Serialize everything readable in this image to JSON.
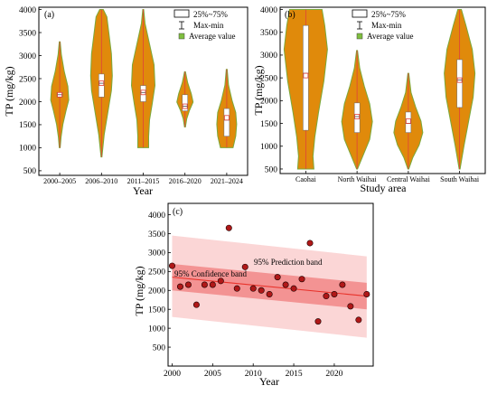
{
  "chart_data": [
    {
      "type": "violin",
      "panel_label": "(a)",
      "xlabel": "Year",
      "ylabel": "TP (mg/kg)",
      "ylim": [
        400,
        4050
      ],
      "yticks": [
        500,
        1000,
        1500,
        2000,
        2500,
        3000,
        3500,
        4000
      ],
      "categories": [
        "2000–2005",
        "2006–2010",
        "2011–2015",
        "2016–2020",
        "2021–2024"
      ],
      "groups": [
        {
          "min": 1000,
          "q1": 2100,
          "median": 2150,
          "q3": 2200,
          "max": 3300,
          "mean": 2150
        },
        {
          "min": 800,
          "q1": 2100,
          "median": 2400,
          "q3": 2600,
          "max": 4000,
          "mean": 2400
        },
        {
          "min": 1000,
          "q1": 2000,
          "median": 2200,
          "q3": 2350,
          "max": 4000,
          "mean": 2200
        },
        {
          "min": 1450,
          "q1": 1800,
          "median": 1900,
          "q3": 2150,
          "max": 2650,
          "mean": 1900
        },
        {
          "min": 1000,
          "q1": 1250,
          "median": 1600,
          "q3": 1850,
          "max": 2700,
          "mean": 1650
        }
      ],
      "legend": {
        "box": "25%~75%",
        "whisker": "Max-min",
        "mean": "Average value",
        "placement": "top-right"
      },
      "colors": {
        "fill": "#e08a0b",
        "fill_edge": "#7aa83a",
        "mean": "#7fbf3f",
        "whisker": "#e0413a"
      }
    },
    {
      "type": "violin",
      "panel_label": "(b)",
      "xlabel": "Study area",
      "ylabel": "TP (mg/kg)",
      "ylim": [
        400,
        4050
      ],
      "yticks": [
        500,
        1000,
        1500,
        2000,
        2500,
        3000,
        3500,
        4000
      ],
      "categories": [
        "Caohai",
        "North Waihai",
        "Central Waihai",
        "South Waihai"
      ],
      "groups": [
        {
          "min": 500,
          "q1": 1350,
          "median": 2600,
          "q3": 3650,
          "max": 4000,
          "mean": 2550
        },
        {
          "min": 500,
          "q1": 1300,
          "median": 1650,
          "q3": 1950,
          "max": 3100,
          "mean": 1650
        },
        {
          "min": 500,
          "q1": 1300,
          "median": 1500,
          "q3": 1750,
          "max": 2600,
          "mean": 1550
        },
        {
          "min": 500,
          "q1": 1850,
          "median": 2450,
          "q3": 2900,
          "max": 4000,
          "mean": 2450
        }
      ],
      "legend": {
        "box": "25%~75%",
        "whisker": "Max-min",
        "mean": "Average value",
        "placement": "top-right"
      },
      "colors": {
        "fill": "#e08a0b",
        "fill_edge": "#7aa83a",
        "mean": "#7fbf3f",
        "whisker": "#e0413a"
      }
    },
    {
      "type": "scatter",
      "panel_label": "(c)",
      "xlabel": "Year",
      "ylabel": "TP (mg/kg)",
      "xlim": [
        1999.5,
        2024.8
      ],
      "ylim": [
        0,
        4300
      ],
      "xticks": [
        2000,
        2005,
        2010,
        2015,
        2020
      ],
      "yticks": [
        500,
        1000,
        1500,
        2000,
        2500,
        3000,
        3500,
        4000
      ],
      "points": [
        {
          "x": 2000,
          "y": 2650
        },
        {
          "x": 2001,
          "y": 2100
        },
        {
          "x": 2002,
          "y": 2150
        },
        {
          "x": 2003,
          "y": 1620
        },
        {
          "x": 2004,
          "y": 2150
        },
        {
          "x": 2005,
          "y": 2150
        },
        {
          "x": 2006,
          "y": 2250
        },
        {
          "x": 2007,
          "y": 3650
        },
        {
          "x": 2008,
          "y": 2050
        },
        {
          "x": 2009,
          "y": 2620
        },
        {
          "x": 2010,
          "y": 2050
        },
        {
          "x": 2011,
          "y": 2000
        },
        {
          "x": 2012,
          "y": 1900
        },
        {
          "x": 2013,
          "y": 2350
        },
        {
          "x": 2014,
          "y": 2150
        },
        {
          "x": 2015,
          "y": 2050
        },
        {
          "x": 2016,
          "y": 2300
        },
        {
          "x": 2017,
          "y": 3250
        },
        {
          "x": 2018,
          "y": 1180
        },
        {
          "x": 2019,
          "y": 1850
        },
        {
          "x": 2020,
          "y": 1900
        },
        {
          "x": 2021,
          "y": 2150
        },
        {
          "x": 2022,
          "y": 1580
        },
        {
          "x": 2023,
          "y": 1220
        },
        {
          "x": 2024,
          "y": 1900
        }
      ],
      "fit": {
        "x": [
          2000,
          2024
        ],
        "y": [
          2350,
          1850
        ]
      },
      "confidence_band": {
        "label": "95% Confidence band",
        "x": [
          2000,
          2024
        ],
        "lower": [
          2000,
          1500
        ],
        "upper": [
          2700,
          2200
        ]
      },
      "prediction_band": {
        "label": "95% Prediction band",
        "x": [
          2000,
          2024
        ],
        "lower": [
          1300,
          750
        ],
        "upper": [
          3450,
          2900
        ]
      },
      "colors": {
        "points": "#b01818",
        "fit": "#e8322a",
        "confidence": "#f28c8c",
        "prediction": "#fbd2d2"
      }
    }
  ]
}
